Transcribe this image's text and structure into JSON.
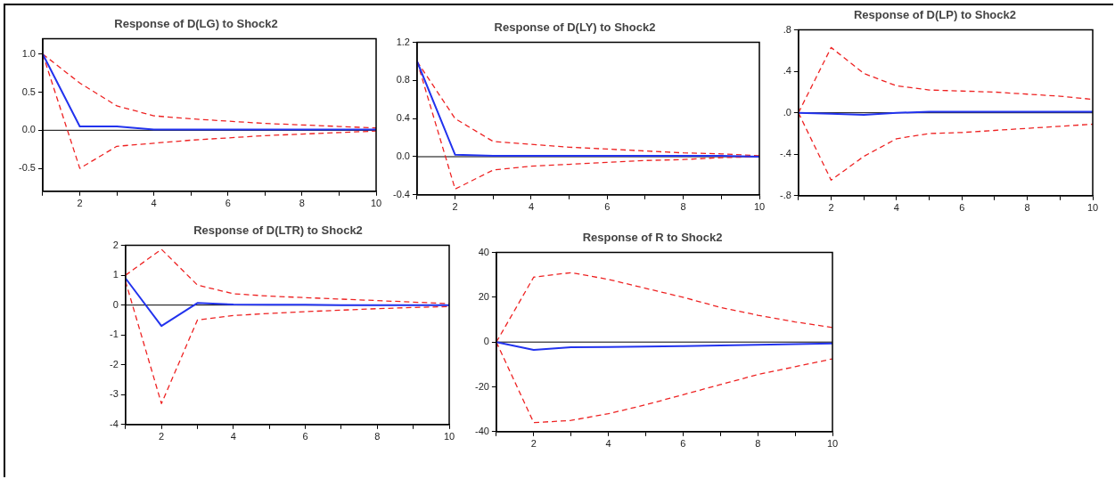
{
  "chart_data": [
    {
      "type": "line",
      "title": "Response of D(LG) to Shock2",
      "x": [
        1,
        2,
        3,
        4,
        5,
        6,
        7,
        8,
        9,
        10
      ],
      "series": [
        {
          "color": "#2233ee",
          "line_style": "solid",
          "values": [
            1.0,
            0.05,
            0.05,
            0.01,
            0.01,
            0.01,
            0.01,
            0.01,
            0.01,
            0.01
          ]
        },
        {
          "color": "#ee2222",
          "line_style": "dashed",
          "values": [
            1.0,
            0.62,
            0.32,
            0.19,
            0.15,
            0.12,
            0.09,
            0.07,
            0.05,
            0.03
          ]
        },
        {
          "color": "#ee2222",
          "line_style": "dashed",
          "values": [
            1.0,
            -0.5,
            -0.21,
            -0.17,
            -0.13,
            -0.1,
            -0.07,
            -0.05,
            -0.03,
            -0.01
          ]
        }
      ],
      "xlim": [
        1,
        10
      ],
      "xticks": [
        {
          "value": 1,
          "label": null
        },
        2,
        {
          "value": 3,
          "label": null
        },
        4,
        {
          "value": 5,
          "label": null
        },
        6,
        {
          "value": 7,
          "label": null
        },
        8,
        {
          "value": 9,
          "label": null
        },
        10
      ],
      "ylim": [
        -0.8,
        1.2
      ],
      "yticks": [
        {
          "value": -0.5,
          "label": "-0.5"
        },
        {
          "value": 0,
          "label": "0.0"
        },
        {
          "value": 0.5,
          "label": "0.5"
        },
        {
          "value": 1,
          "label": "1.0"
        }
      ],
      "ref_lines": [
        {
          "axis": "y",
          "value": 0,
          "color": "#000000"
        }
      ],
      "grid": false,
      "legend": false
    },
    {
      "type": "line",
      "title": "Response of D(LY) to Shock2",
      "x": [
        1,
        2,
        3,
        4,
        5,
        6,
        7,
        8,
        9,
        10
      ],
      "series": [
        {
          "color": "#2233ee",
          "line_style": "solid",
          "values": [
            1.0,
            0.02,
            0.01,
            0.01,
            0.01,
            0.01,
            0.01,
            0.01,
            0.01,
            0.0
          ]
        },
        {
          "color": "#ee2222",
          "line_style": "dashed",
          "values": [
            1.0,
            0.4,
            0.16,
            0.13,
            0.1,
            0.08,
            0.06,
            0.04,
            0.03,
            0.01
          ]
        },
        {
          "color": "#ee2222",
          "line_style": "dashed",
          "values": [
            1.0,
            -0.34,
            -0.14,
            -0.1,
            -0.08,
            -0.06,
            -0.04,
            -0.03,
            -0.01,
            0.0
          ]
        }
      ],
      "xlim": [
        1,
        10
      ],
      "xticks": [
        {
          "value": 1,
          "label": null
        },
        2,
        {
          "value": 3,
          "label": null
        },
        4,
        {
          "value": 5,
          "label": null
        },
        6,
        {
          "value": 7,
          "label": null
        },
        8,
        {
          "value": 9,
          "label": null
        },
        10
      ],
      "ylim": [
        -0.4,
        1.2
      ],
      "yticks": [
        -0.4,
        {
          "value": 0,
          "label": "0.0"
        },
        0.4,
        0.8,
        1.2
      ],
      "ref_lines": [
        {
          "axis": "y",
          "value": 0,
          "color": "#000000"
        }
      ],
      "grid": false,
      "legend": false
    },
    {
      "type": "line",
      "title": "Response of D(LP) to Shock2",
      "x": [
        1,
        2,
        3,
        4,
        5,
        6,
        7,
        8,
        9,
        10
      ],
      "series": [
        {
          "color": "#2233ee",
          "line_style": "solid",
          "values": [
            0.0,
            -0.01,
            -0.02,
            0.0,
            0.01,
            0.01,
            0.01,
            0.01,
            0.01,
            0.01
          ]
        },
        {
          "color": "#ee2222",
          "line_style": "dashed",
          "values": [
            0.0,
            0.63,
            0.38,
            0.26,
            0.22,
            0.21,
            0.2,
            0.18,
            0.16,
            0.13
          ]
        },
        {
          "color": "#ee2222",
          "line_style": "dashed",
          "values": [
            0.0,
            -0.65,
            -0.42,
            -0.25,
            -0.2,
            -0.19,
            -0.17,
            -0.15,
            -0.13,
            -0.11
          ]
        }
      ],
      "xlim": [
        1,
        10
      ],
      "xticks": [
        {
          "value": 1,
          "label": null
        },
        2,
        {
          "value": 3,
          "label": null
        },
        4,
        {
          "value": 5,
          "label": null
        },
        6,
        {
          "value": 7,
          "label": null
        },
        8,
        {
          "value": 9,
          "label": null
        },
        10
      ],
      "ylim": [
        -0.8,
        0.8
      ],
      "yticks": [
        {
          "value": -0.8,
          "label": "-.8"
        },
        {
          "value": -0.4,
          "label": "-.4"
        },
        {
          "value": 0,
          "label": ".0"
        },
        {
          "value": 0.4,
          "label": ".4"
        },
        {
          "value": 0.8,
          "label": ".8"
        }
      ],
      "ref_lines": [
        {
          "axis": "y",
          "value": 0,
          "color": "#000000"
        }
      ],
      "grid": false,
      "legend": false
    },
    {
      "type": "line",
      "title": "Response of D(LTR) to Shock2",
      "x": [
        1,
        2,
        3,
        4,
        5,
        6,
        7,
        8,
        9,
        10
      ],
      "series": [
        {
          "color": "#2233ee",
          "line_style": "solid",
          "values": [
            0.9,
            -0.7,
            0.07,
            0.02,
            0.01,
            0.01,
            0.0,
            0.0,
            0.0,
            0.0
          ]
        },
        {
          "color": "#ee2222",
          "line_style": "dashed",
          "values": [
            1.0,
            1.87,
            0.67,
            0.38,
            0.3,
            0.25,
            0.2,
            0.15,
            0.1,
            0.05
          ]
        },
        {
          "color": "#ee2222",
          "line_style": "dashed",
          "values": [
            0.8,
            -3.3,
            -0.5,
            -0.35,
            -0.28,
            -0.22,
            -0.17,
            -0.12,
            -0.08,
            -0.05
          ]
        }
      ],
      "xlim": [
        1,
        10
      ],
      "xticks": [
        {
          "value": 1,
          "label": null
        },
        2,
        {
          "value": 3,
          "label": null
        },
        4,
        {
          "value": 5,
          "label": null
        },
        6,
        {
          "value": 7,
          "label": null
        },
        8,
        {
          "value": 9,
          "label": null
        },
        10
      ],
      "ylim": [
        -4,
        2
      ],
      "yticks": [
        -4,
        -3,
        -2,
        -1,
        0,
        1,
        2
      ],
      "ref_lines": [
        {
          "axis": "y",
          "value": 0,
          "color": "#000000"
        }
      ],
      "grid": false,
      "legend": false
    },
    {
      "type": "line",
      "title": "Response of R to Shock2",
      "x": [
        1,
        2,
        3,
        4,
        5,
        6,
        7,
        8,
        9,
        10
      ],
      "series": [
        {
          "color": "#2233ee",
          "line_style": "solid",
          "values": [
            0,
            -3.5,
            -2.3,
            -2.2,
            -2.0,
            -1.8,
            -1.5,
            -1.2,
            -0.9,
            -0.6
          ]
        },
        {
          "color": "#ee2222",
          "line_style": "dashed",
          "values": [
            0,
            29,
            31,
            28,
            24,
            20,
            15.5,
            12,
            9,
            6.5
          ]
        },
        {
          "color": "#ee2222",
          "line_style": "dashed",
          "values": [
            0,
            -36,
            -35,
            -32,
            -28,
            -23.5,
            -19,
            -14.5,
            -11,
            -7.5
          ]
        }
      ],
      "xlim": [
        1,
        10
      ],
      "xticks": [
        {
          "value": 1,
          "label": null
        },
        2,
        {
          "value": 3,
          "label": null
        },
        4,
        {
          "value": 5,
          "label": null
        },
        6,
        {
          "value": 7,
          "label": null
        },
        8,
        {
          "value": 9,
          "label": null
        },
        10
      ],
      "ylim": [
        -40,
        40
      ],
      "yticks": [
        -40,
        -20,
        0,
        20,
        40
      ],
      "ref_lines": [
        {
          "axis": "y",
          "value": 0,
          "color": "#000000"
        }
      ],
      "grid": false,
      "legend": false
    }
  ]
}
